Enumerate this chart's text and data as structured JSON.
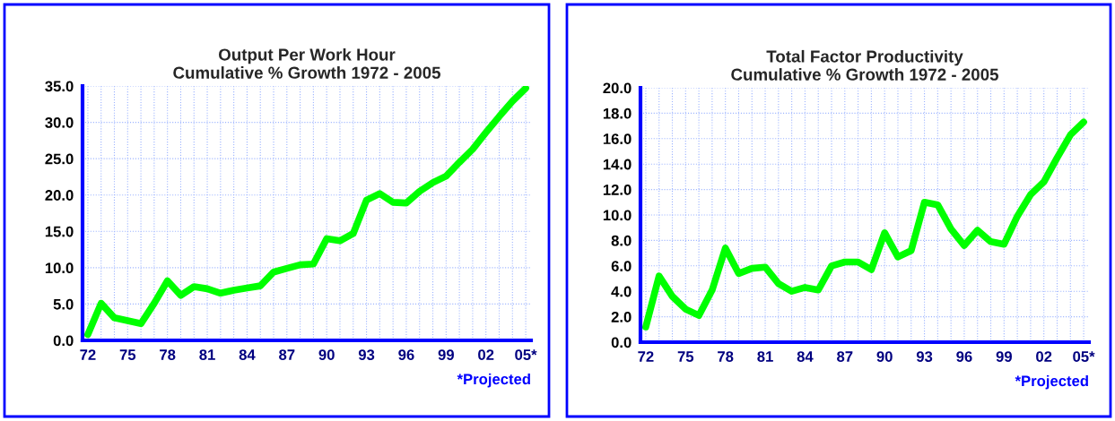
{
  "chart_data": [
    {
      "type": "line",
      "title": "Output Per Work Hour\nCumulative % Growth 1972 - 2005",
      "categories": [
        "72",
        null,
        null,
        "75",
        null,
        null,
        "78",
        null,
        null,
        "81",
        null,
        null,
        "84",
        null,
        null,
        "87",
        null,
        null,
        "90",
        null,
        null,
        "93",
        null,
        null,
        "96",
        null,
        null,
        "99",
        null,
        null,
        "02",
        null,
        null,
        "05*"
      ],
      "series": [
        {
          "color": "#00ff00",
          "values": [
            0.8,
            5.1,
            3.1,
            2.7,
            2.3,
            5.1,
            8.2,
            6.2,
            7.4,
            7.1,
            6.5,
            6.9,
            7.2,
            7.5,
            9.4,
            9.9,
            10.4,
            10.5,
            14.0,
            13.7,
            14.7,
            19.3,
            20.2,
            19.0,
            18.9,
            20.5,
            21.7,
            22.6,
            24.5,
            26.3,
            28.6,
            30.8,
            32.9,
            34.7
          ]
        }
      ],
      "ylim": [
        0,
        35
      ],
      "yticks": [
        {
          "value": 0,
          "label": "0.0"
        },
        {
          "value": 5,
          "label": "5.0"
        },
        {
          "value": 10,
          "label": "10.0"
        },
        {
          "value": 15,
          "label": "15.0"
        },
        {
          "value": 20,
          "label": "20.0"
        },
        {
          "value": 25,
          "label": "25.0"
        },
        {
          "value": 30,
          "label": "30.0"
        },
        {
          "value": 35,
          "label": "35.0"
        }
      ],
      "grid": true,
      "legend": false,
      "marker": "none",
      "line_style": "solid",
      "annotations": [
        "*Projected"
      ]
    },
    {
      "type": "line",
      "title": "Total Factor Productivity\nCumulative % Growth 1972 - 2005",
      "categories": [
        "72",
        null,
        null,
        "75",
        null,
        null,
        "78",
        null,
        null,
        "81",
        null,
        null,
        "84",
        null,
        null,
        "87",
        null,
        null,
        "90",
        null,
        null,
        "93",
        null,
        null,
        "96",
        null,
        null,
        "99",
        null,
        null,
        "02",
        null,
        null,
        "05*"
      ],
      "series": [
        {
          "color": "#00ff00",
          "values": [
            1.2,
            5.2,
            3.6,
            2.6,
            2.1,
            4.1,
            7.4,
            5.4,
            5.8,
            5.9,
            4.6,
            4.0,
            4.3,
            4.1,
            6.0,
            6.3,
            6.3,
            5.7,
            8.6,
            6.7,
            7.2,
            11.0,
            10.8,
            8.9,
            7.6,
            8.8,
            7.9,
            7.7,
            9.9,
            11.6,
            12.6,
            14.5,
            16.3,
            17.3
          ]
        }
      ],
      "ylim": [
        0,
        20
      ],
      "yticks": [
        {
          "value": 0,
          "label": "0.0"
        },
        {
          "value": 2,
          "label": "2.0"
        },
        {
          "value": 4,
          "label": "4.0"
        },
        {
          "value": 6,
          "label": "6.0"
        },
        {
          "value": 8,
          "label": "8.0"
        },
        {
          "value": 10,
          "label": "10.0"
        },
        {
          "value": 12,
          "label": "12.0"
        },
        {
          "value": 14,
          "label": "14.0"
        },
        {
          "value": 16,
          "label": "16.0"
        },
        {
          "value": 18,
          "label": "18.0"
        },
        {
          "value": 20,
          "label": "20.0"
        }
      ],
      "grid": true,
      "legend": false,
      "marker": "none",
      "line_style": "solid",
      "annotations": [
        "*Projected"
      ]
    }
  ]
}
